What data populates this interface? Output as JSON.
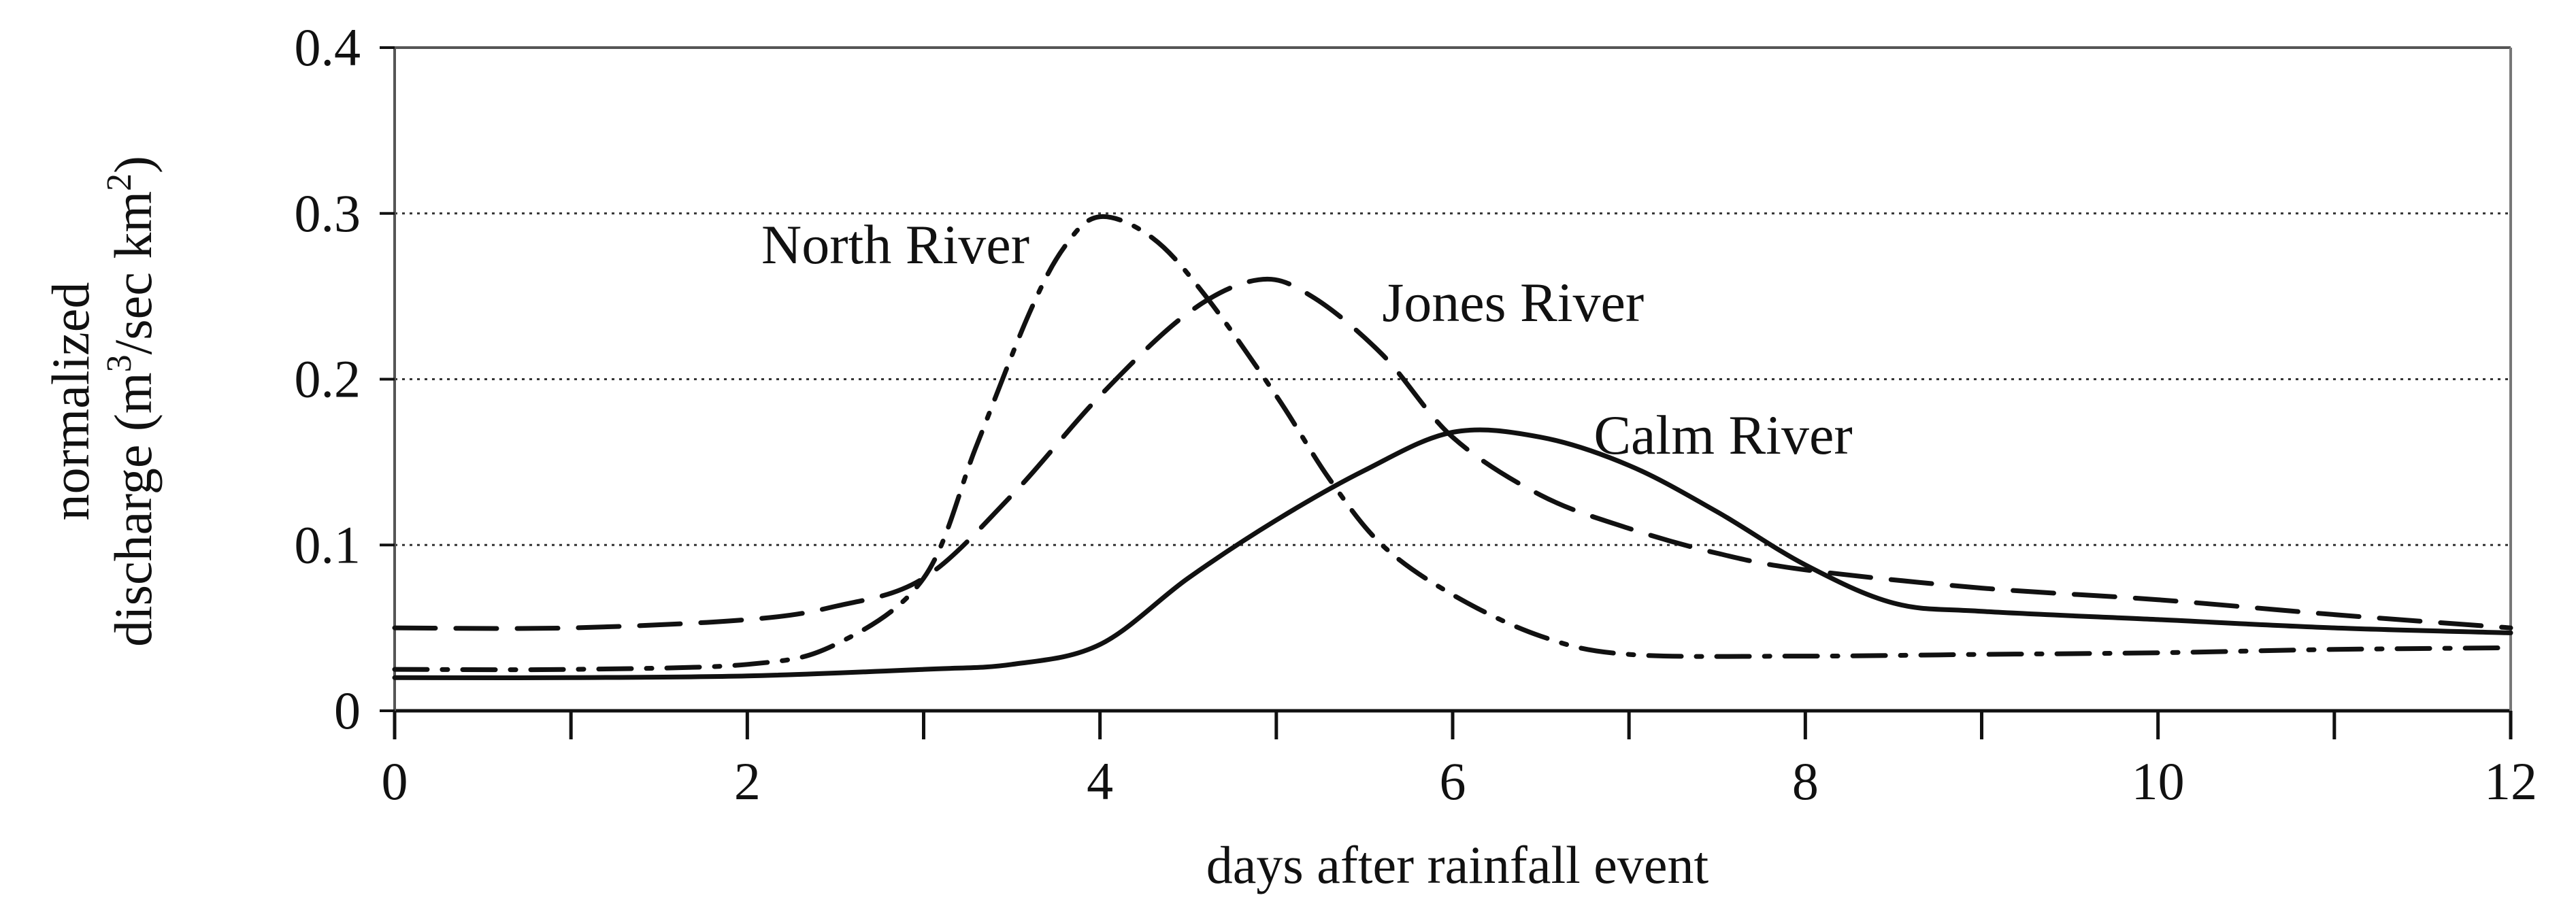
{
  "chart_data": {
    "type": "line",
    "xlabel": "days after rainfall event",
    "ylabel_line1": "normalized",
    "ylabel_line2_prefix": "discharge (m",
    "ylabel_sup1": "3",
    "ylabel_line2_mid": "/sec km",
    "ylabel_sup2": "2",
    "ylabel_line2_suffix": ")",
    "xlim": [
      0,
      12
    ],
    "ylim": [
      0,
      0.4
    ],
    "x_ticks": [
      0,
      2,
      4,
      6,
      8,
      10,
      12
    ],
    "x_minor_ticks": [
      1,
      3,
      5,
      7,
      9,
      11
    ],
    "y_ticks": [
      0,
      0.1,
      0.2,
      0.3,
      0.4
    ],
    "x_tick_labels": [
      "0",
      "2",
      "4",
      "6",
      "8",
      "10",
      "12"
    ],
    "y_tick_labels": [
      "0",
      "0.1",
      "0.2",
      "0.3",
      "0.4"
    ],
    "grid": "horizontal dotted",
    "series": [
      {
        "name": "North River",
        "style": "dash-dot",
        "x": [
          0,
          1,
          2,
          2.5,
          3,
          3.3,
          3.6,
          3.8,
          4,
          4.3,
          4.6,
          5,
          5.3,
          5.6,
          6,
          6.5,
          7,
          8,
          9,
          10,
          11,
          12
        ],
        "y": [
          0.025,
          0.025,
          0.028,
          0.04,
          0.08,
          0.16,
          0.24,
          0.28,
          0.298,
          0.285,
          0.25,
          0.19,
          0.14,
          0.1,
          0.07,
          0.045,
          0.034,
          0.033,
          0.034,
          0.035,
          0.037,
          0.038
        ]
      },
      {
        "name": "Jones River",
        "style": "dashed",
        "x": [
          0,
          1,
          2,
          2.5,
          3,
          3.5,
          4,
          4.5,
          4.9,
          5.2,
          5.6,
          6,
          6.5,
          7,
          7.5,
          8,
          9,
          10,
          11,
          12
        ],
        "y": [
          0.05,
          0.05,
          0.055,
          0.063,
          0.08,
          0.13,
          0.19,
          0.24,
          0.26,
          0.25,
          0.215,
          0.165,
          0.13,
          0.11,
          0.095,
          0.085,
          0.074,
          0.067,
          0.058,
          0.05
        ]
      },
      {
        "name": "Calm River",
        "style": "solid",
        "x": [
          0,
          1,
          2,
          3,
          3.5,
          4,
          4.5,
          5,
          5.5,
          6,
          6.5,
          7,
          7.5,
          8,
          8.5,
          9,
          10,
          11,
          12
        ],
        "y": [
          0.02,
          0.02,
          0.021,
          0.025,
          0.028,
          0.04,
          0.08,
          0.115,
          0.145,
          0.168,
          0.165,
          0.148,
          0.12,
          0.088,
          0.065,
          0.06,
          0.055,
          0.05,
          0.047
        ]
      }
    ],
    "series_label_anchor_x": [
      3.6,
      5.6,
      6.8
    ],
    "series_label_anchor_y": [
      0.27,
      0.235,
      0.155
    ]
  }
}
